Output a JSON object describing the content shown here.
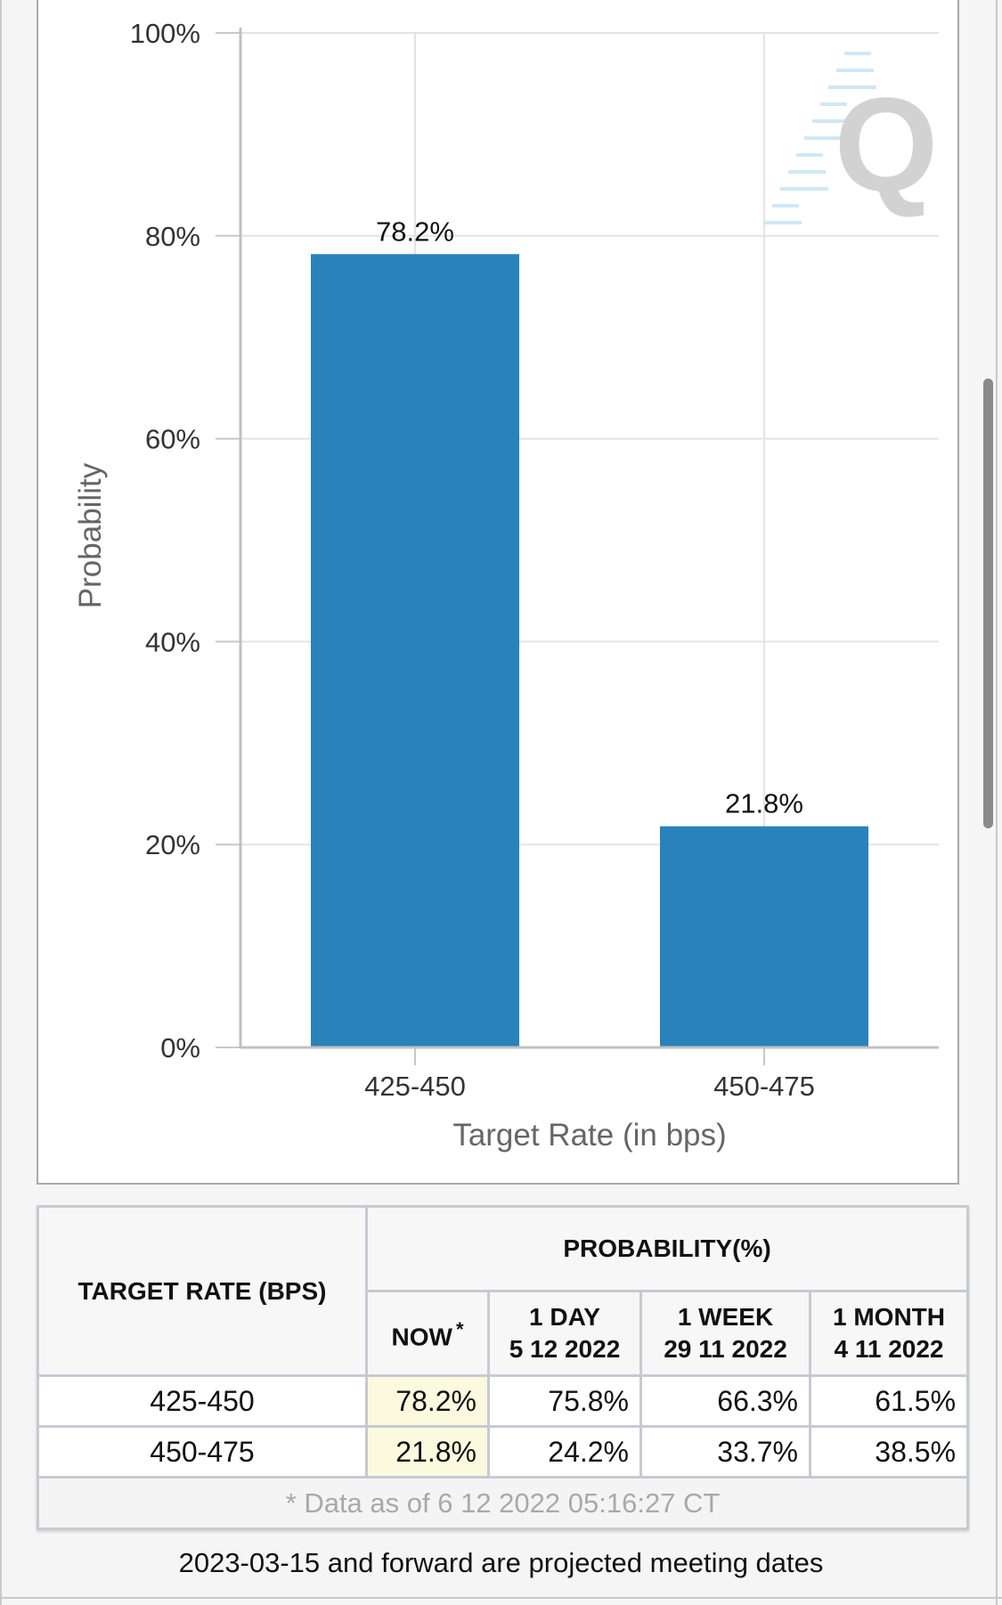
{
  "chart_data": {
    "type": "bar",
    "categories": [
      "425-450",
      "450-475"
    ],
    "values": [
      78.2,
      21.8
    ],
    "data_labels": [
      "78.2%",
      "21.8%"
    ],
    "xlabel": "Target Rate (in bps)",
    "ylabel": "Probability",
    "ylim": [
      0,
      100
    ],
    "yticks": [
      "0%",
      "20%",
      "40%",
      "60%",
      "80%",
      "100%"
    ],
    "grid": true,
    "bar_color": "#2a82bb",
    "watermark": "Q"
  },
  "table": {
    "rate_header": "TARGET RATE (BPS)",
    "prob_header": "PROBABILITY(%)",
    "now_label": "NOW",
    "now_marker": "*",
    "columns": [
      {
        "line1": "1 DAY",
        "line2": "5 12 2022"
      },
      {
        "line1": "1 WEEK",
        "line2": "29 11 2022"
      },
      {
        "line1": "1 MONTH",
        "line2": "4 11 2022"
      }
    ],
    "rows": [
      {
        "rate": "425-450",
        "now": "78.2%",
        "day": "75.8%",
        "week": "66.3%",
        "month": "61.5%"
      },
      {
        "rate": "450-475",
        "now": "21.8%",
        "day": "24.2%",
        "week": "33.7%",
        "month": "38.5%"
      }
    ],
    "note": "* Data as of 6 12 2022 05:16:27 CT"
  },
  "footer": "2023-03-15 and forward are projected meeting dates",
  "colors": {
    "bar": "#2a82bb",
    "now_highlight": "#fbfadf",
    "grid": "#e3e3e3"
  }
}
